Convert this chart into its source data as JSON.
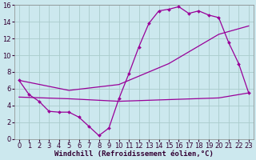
{
  "xlabel": "Windchill (Refroidissement éolien,°C)",
  "bg_color": "#cce8ee",
  "line_color": "#990099",
  "grid_color": "#aacccc",
  "xlim": [
    -0.5,
    23.5
  ],
  "ylim": [
    0,
    16
  ],
  "xticks": [
    0,
    1,
    2,
    3,
    4,
    5,
    6,
    7,
    8,
    9,
    10,
    11,
    12,
    13,
    14,
    15,
    16,
    17,
    18,
    19,
    20,
    21,
    22,
    23
  ],
  "yticks": [
    0,
    2,
    4,
    6,
    8,
    10,
    12,
    14,
    16
  ],
  "line1_x": [
    0,
    1,
    2,
    3,
    4,
    5,
    6,
    7,
    8,
    9,
    10,
    11,
    12,
    13,
    14,
    15,
    16,
    17,
    18,
    19,
    20,
    21,
    22,
    23
  ],
  "line1_y": [
    7.0,
    5.3,
    4.5,
    3.3,
    3.2,
    3.2,
    2.6,
    1.5,
    0.4,
    1.3,
    4.8,
    7.8,
    11.0,
    13.8,
    15.3,
    15.5,
    15.8,
    15.0,
    15.3,
    14.8,
    14.5,
    11.5,
    9.0,
    5.5
  ],
  "line2_x": [
    0,
    5,
    10,
    15,
    20,
    23
  ],
  "line2_y": [
    7.0,
    5.8,
    6.5,
    9.0,
    12.5,
    13.5
  ],
  "line3_x": [
    0,
    5,
    10,
    15,
    20,
    23
  ],
  "line3_y": [
    5.0,
    4.8,
    4.5,
    4.7,
    4.9,
    5.5
  ],
  "xlabel_fontsize": 6.5,
  "tick_fontsize": 6,
  "label_color": "#330033",
  "spine_color": "#888888"
}
